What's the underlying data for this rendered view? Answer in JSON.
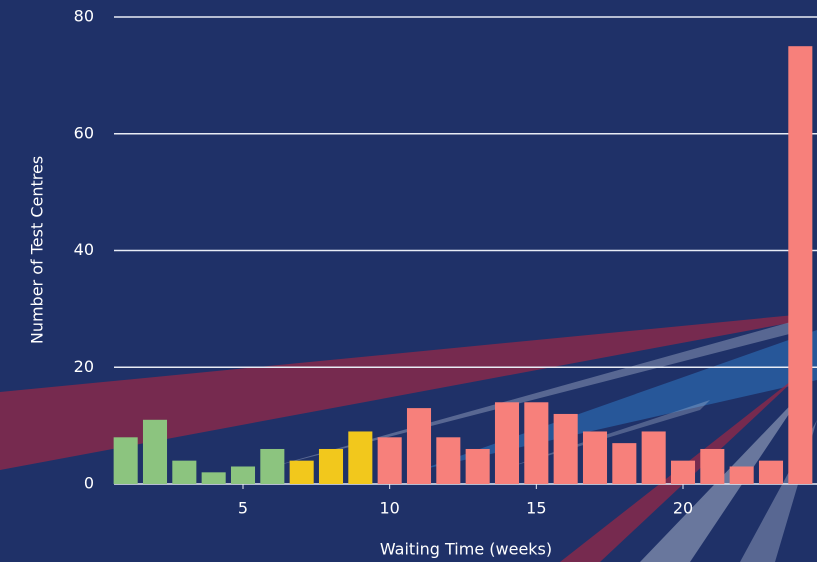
{
  "chart_data": {
    "type": "bar",
    "x_label": "Waiting Time (weeks)",
    "y_label": "Number of Test Centres",
    "x": [
      1,
      2,
      3,
      4,
      5,
      6,
      7,
      8,
      9,
      10,
      11,
      12,
      13,
      14,
      15,
      16,
      17,
      18,
      19,
      20,
      21,
      22,
      23,
      24
    ],
    "values": [
      8,
      11,
      4,
      2,
      3,
      6,
      4,
      6,
      9,
      8,
      13,
      8,
      6,
      14,
      14,
      12,
      9,
      7,
      9,
      4,
      6,
      3,
      4,
      75
    ],
    "colors": [
      "#8cc47f",
      "#8cc47f",
      "#8cc47f",
      "#8cc47f",
      "#8cc47f",
      "#8cc47f",
      "#f2c81c",
      "#f2c81c",
      "#f2c81c",
      "#f7807b",
      "#f7807b",
      "#f7807b",
      "#f7807b",
      "#f7807b",
      "#f7807b",
      "#f7807b",
      "#f7807b",
      "#f7807b",
      "#f7807b",
      "#f7807b",
      "#f7807b",
      "#f7807b",
      "#f7807b",
      "#f7807b"
    ],
    "xlim": [
      0.5,
      24.5
    ],
    "xticks": [
      5,
      10,
      15,
      20
    ],
    "ylim": [
      0,
      80
    ],
    "yticks": [
      0,
      20,
      40,
      60,
      80
    ],
    "grid": true
  }
}
